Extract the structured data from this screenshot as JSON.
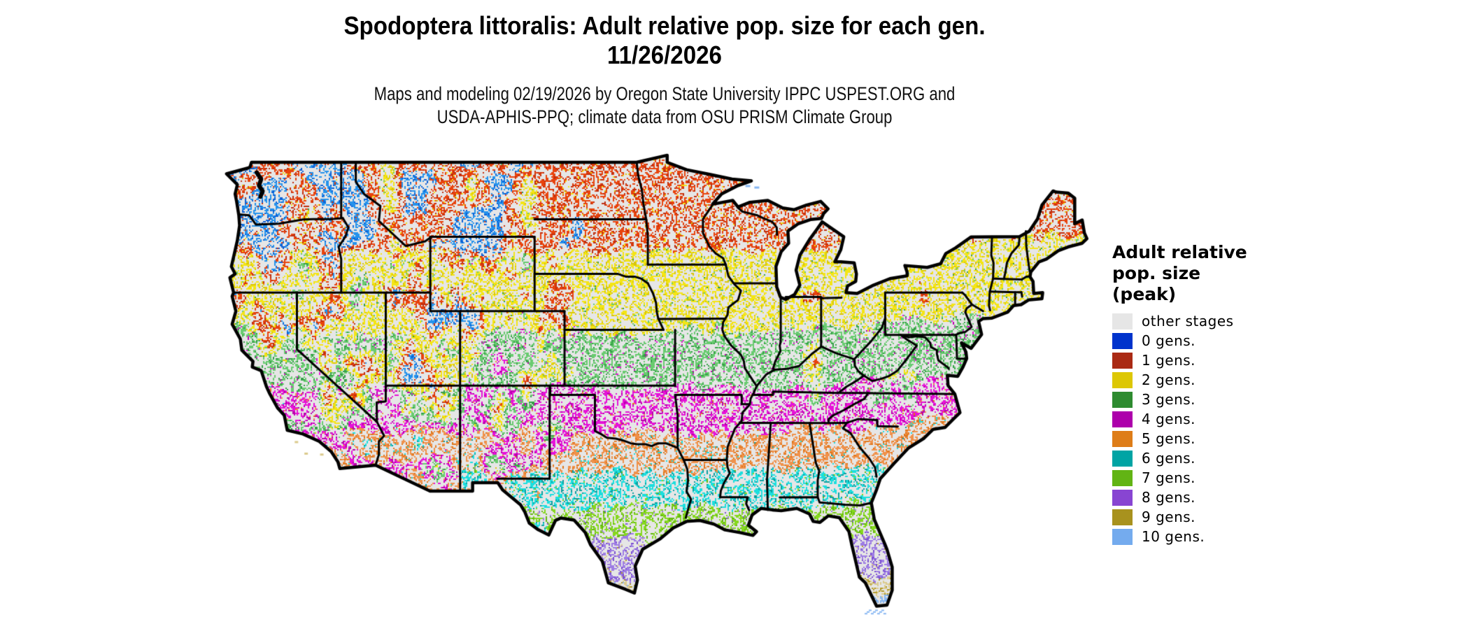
{
  "title": {
    "line1": "Spodoptera littoralis: Adult relative pop. size for each gen.",
    "line2": "11/26/2026"
  },
  "subtitle": {
    "line1": "Maps and modeling 02/19/2026 by Oregon State University IPPC USPEST.ORG and",
    "line2": "USDA-APHIS-PPQ; climate data from OSU PRISM Climate Group"
  },
  "legend": {
    "title_lines": [
      "Adult relative",
      "pop. size",
      "(peak)"
    ],
    "items": [
      {
        "label": "other stages",
        "color": "#e6e6e6",
        "map_color": "#e6e6e6",
        "map_color_dark": "#dedede"
      },
      {
        "label": "0 gens.",
        "color": "#0033cc",
        "map_color": "#2492ec",
        "map_color_dark": "#0b5fd6"
      },
      {
        "label": "1 gens.",
        "color": "#aa2a14",
        "map_color": "#e8430d",
        "map_color_dark": "#bf2d0e"
      },
      {
        "label": "2 gens.",
        "color": "#ddc704",
        "map_color": "#f4e515",
        "map_color_dark": "#d9c708"
      },
      {
        "label": "3 gens.",
        "color": "#2e8b30",
        "map_color": "#69cb70",
        "map_color_dark": "#34a046"
      },
      {
        "label": "4 gens.",
        "color": "#ad00ab",
        "map_color": "#e612d8",
        "map_color_dark": "#bb00ad"
      },
      {
        "label": "5 gens.",
        "color": "#de7d18",
        "map_color": "#f0914a",
        "map_color_dark": "#e0761b"
      },
      {
        "label": "6 gens.",
        "color": "#00a4a4",
        "map_color": "#1cdede",
        "map_color_dark": "#0c9f9f"
      },
      {
        "label": "7 gens.",
        "color": "#62b414",
        "map_color": "#86d81e",
        "map_color_dark": "#63b90e"
      },
      {
        "label": "8 gens.",
        "color": "#8845d2",
        "map_color": "#9d7ce4",
        "map_color_dark": "#7b4fd2"
      },
      {
        "label": "9 gens.",
        "color": "#a8921e",
        "map_color": "#dbca8c",
        "map_color_dark": "#b29b2a"
      },
      {
        "label": "10 gens.",
        "color": "#74abee",
        "map_color": "#86b6f2",
        "map_color_dark": "#6aa3e8"
      }
    ]
  },
  "map": {
    "region": "Contiguous United States",
    "land_color": "#e6e6e6",
    "border_color": "#000000",
    "band_lat_min": [
      44.2,
      40.0,
      36.9,
      34.6,
      32.4,
      30.5,
      28.7,
      26.4,
      25.4
    ],
    "bands_note": "generations increase from 1 in the north to 9-10 in south Florida / south Texas; high western elevations show 0-1 gens (blue/red)"
  }
}
